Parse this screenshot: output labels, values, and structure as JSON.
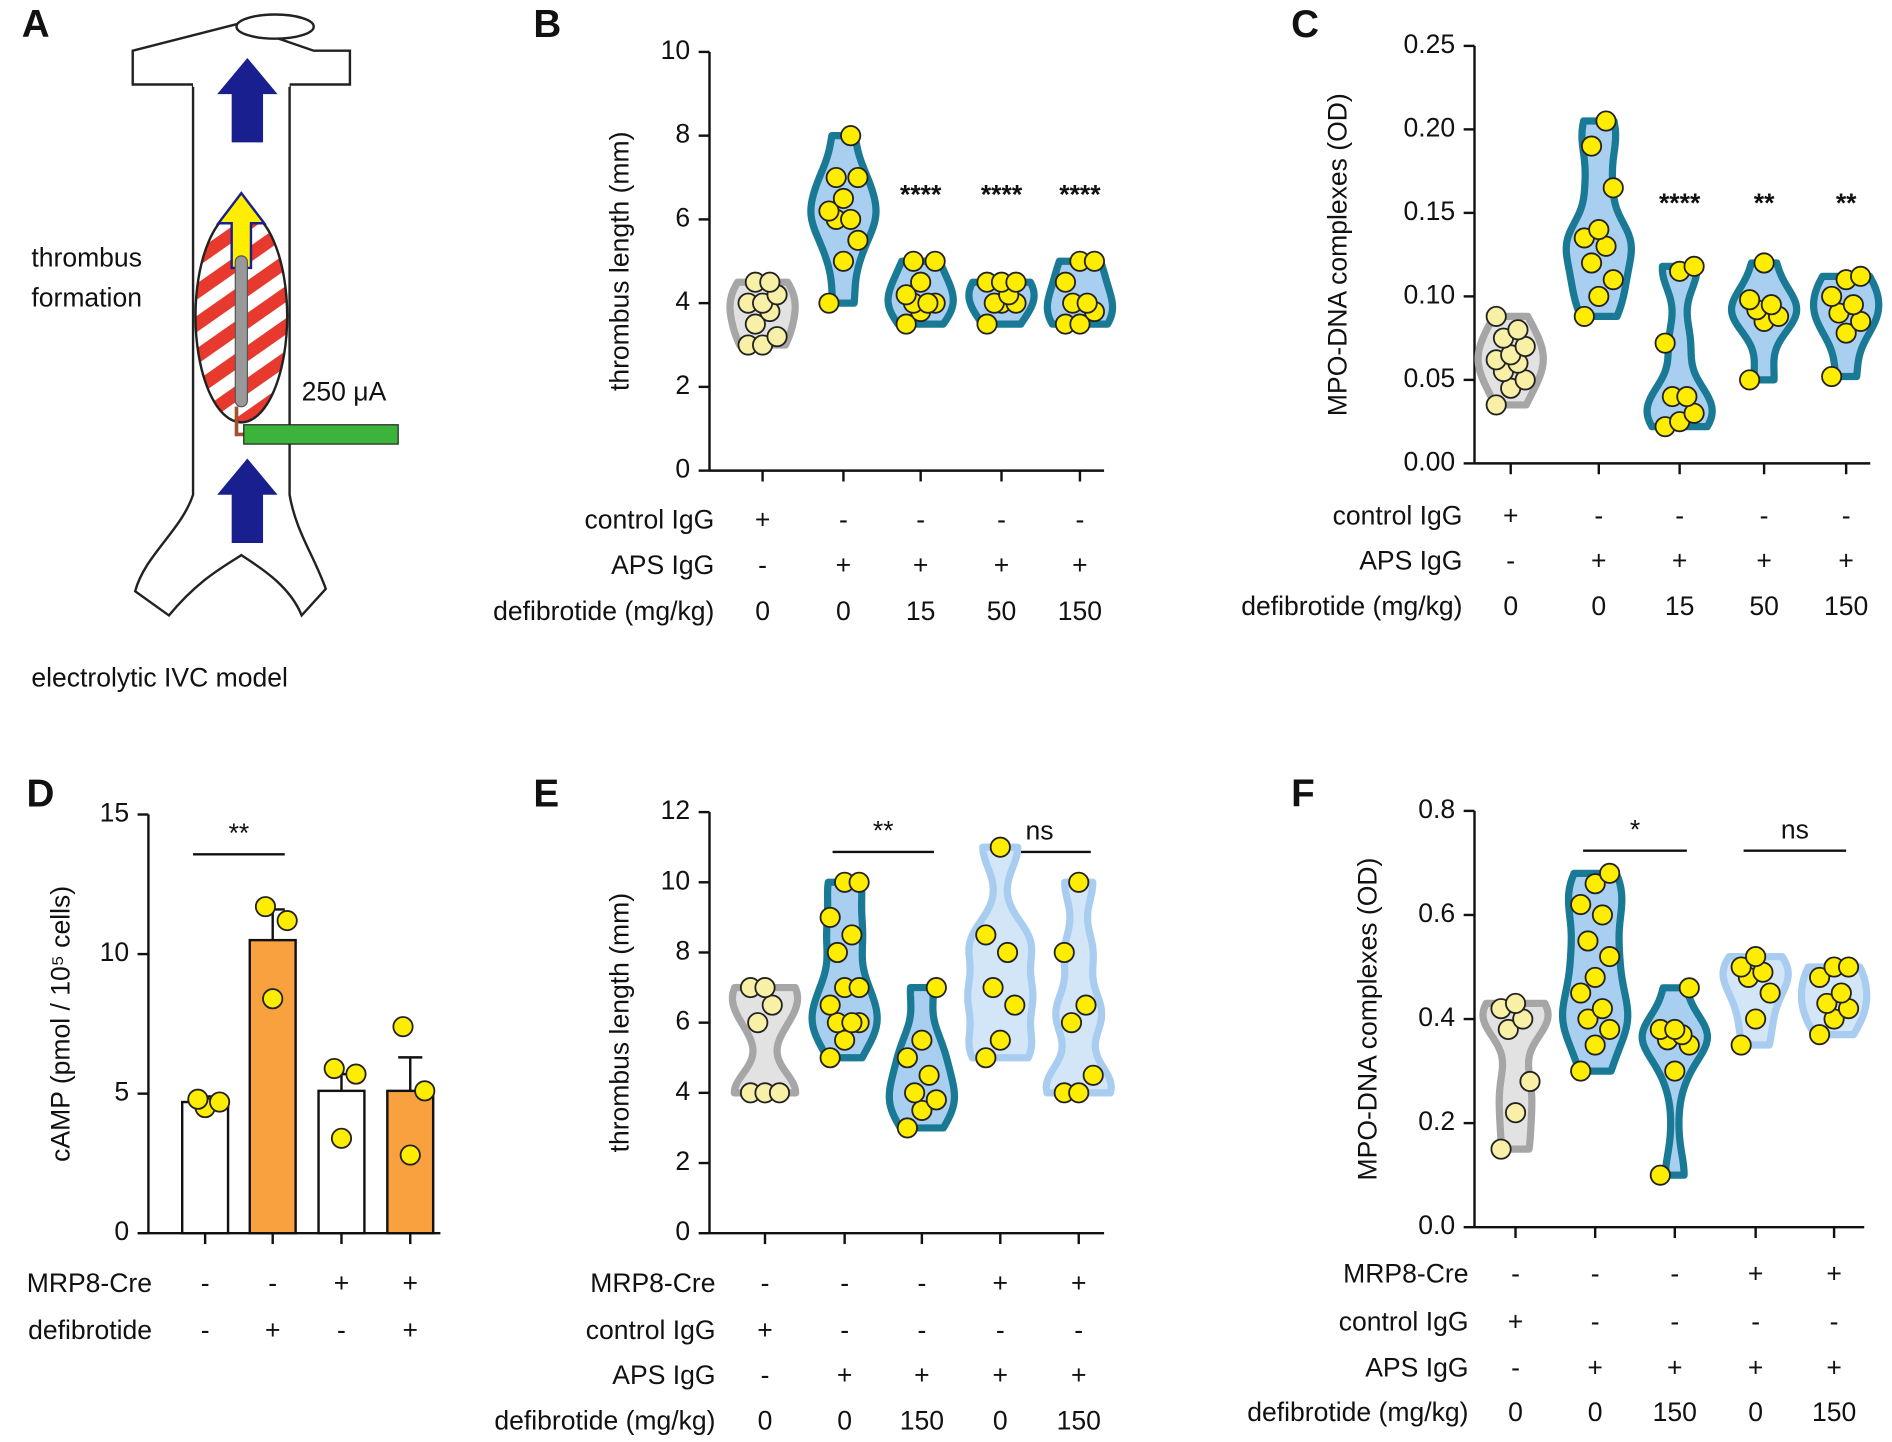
{
  "diagram": {
    "panel": "A",
    "labels": {
      "thrombus": [
        "thrombus",
        "formation"
      ],
      "current": "250 μA",
      "caption": "electrolytic IVC model"
    }
  },
  "chart_data": [
    {
      "type": "violin",
      "panel": "B",
      "y_label": "thrombus length (mm)",
      "ylim": [
        0,
        10
      ],
      "yticks": [
        0,
        2,
        4,
        6,
        8,
        10
      ],
      "row_labels": [
        "control IgG",
        "APS IgG",
        "defibrotide (mg/kg)"
      ],
      "rows": [
        [
          "+",
          "-",
          "-",
          "-",
          "-"
        ],
        [
          "-",
          "+",
          "+",
          "+",
          "+"
        ],
        [
          0,
          0,
          15,
          50,
          150
        ]
      ],
      "significance": [
        null,
        null,
        "****",
        "****",
        "****"
      ],
      "significance_style": "star",
      "groups": [
        {
          "values": [
            3,
            3,
            3.2,
            3.5,
            3.8,
            4,
            4,
            4.2,
            4.5,
            4.5
          ],
          "edge": "#a6a6a6",
          "fill": "#e2e2e2",
          "point_color": "#f7f0a6"
        },
        {
          "values": [
            4,
            5,
            5.5,
            6,
            6,
            6.2,
            6.5,
            7,
            7,
            8
          ],
          "edge": "#1a7a96",
          "fill": "#a8cff0",
          "point_color": "#ffed00"
        },
        {
          "values": [
            3.5,
            3.8,
            4,
            4,
            4,
            4.2,
            4.5,
            5,
            5
          ],
          "edge": "#1a7a96",
          "fill": "#a8cff0",
          "point_color": "#ffed00"
        },
        {
          "values": [
            3.5,
            4,
            4,
            4,
            4.2,
            4.5,
            4.5,
            4.5
          ],
          "edge": "#1a7a96",
          "fill": "#a8cff0",
          "point_color": "#ffed00"
        },
        {
          "values": [
            3.5,
            3.5,
            3.8,
            4,
            4,
            4.5,
            5,
            5
          ],
          "edge": "#1a7a96",
          "fill": "#a8cff0",
          "point_color": "#ffed00"
        }
      ]
    },
    {
      "type": "violin",
      "panel": "C",
      "y_label": "MPO-DNA complexes (OD)",
      "ylim": [
        0,
        0.25
      ],
      "yticks": [
        {
          "value": 0,
          "label": "0.00"
        },
        {
          "value": 0.05,
          "label": "0.05"
        },
        {
          "value": 0.1,
          "label": "0.10"
        },
        {
          "value": 0.15,
          "label": "0.15"
        },
        {
          "value": 0.2,
          "label": "0.20"
        },
        {
          "value": 0.25,
          "label": "0.25"
        }
      ],
      "row_labels": [
        "control IgG",
        "APS IgG",
        "defibrotide (mg/kg)"
      ],
      "rows": [
        [
          "+",
          "-",
          "-",
          "-",
          "-"
        ],
        [
          "-",
          "+",
          "+",
          "+",
          "+"
        ],
        [
          0,
          0,
          15,
          50,
          150
        ]
      ],
      "significance": [
        null,
        null,
        "****",
        "**",
        "**"
      ],
      "significance_style": "star",
      "groups": [
        {
          "values": [
            0.035,
            0.045,
            0.05,
            0.055,
            0.06,
            0.062,
            0.065,
            0.07,
            0.075,
            0.08,
            0.088
          ],
          "edge": "#a6a6a6",
          "fill": "#e2e2e2",
          "point_color": "#f7f0a6"
        },
        {
          "values": [
            0.088,
            0.1,
            0.11,
            0.12,
            0.13,
            0.135,
            0.14,
            0.165,
            0.19,
            0.205
          ],
          "edge": "#1a7a96",
          "fill": "#a8cff0",
          "point_color": "#ffed00"
        },
        {
          "values": [
            0.022,
            0.025,
            0.03,
            0.04,
            0.04,
            0.072,
            0.115,
            0.118
          ],
          "edge": "#1a7a96",
          "fill": "#a8cff0",
          "point_color": "#ffed00"
        },
        {
          "values": [
            0.05,
            0.085,
            0.088,
            0.092,
            0.095,
            0.098,
            0.12
          ],
          "edge": "#1a7a96",
          "fill": "#a8cff0",
          "point_color": "#ffed00"
        },
        {
          "values": [
            0.052,
            0.078,
            0.085,
            0.09,
            0.095,
            0.1,
            0.11,
            0.112
          ],
          "edge": "#1a7a96",
          "fill": "#a8cff0",
          "point_color": "#ffed00"
        }
      ]
    },
    {
      "type": "bar",
      "panel": "D",
      "y_label": "cAMP (pmol / 10⁵ cells)",
      "ylim": [
        0,
        15
      ],
      "yticks": [
        0,
        5,
        10,
        15
      ],
      "row_labels": [
        "MRP8-Cre",
        "defibrotide"
      ],
      "rows": [
        [
          "-",
          "-",
          "+",
          "+"
        ],
        [
          "-",
          "+",
          "-",
          "+"
        ]
      ],
      "significance": [
        "**",
        null,
        null,
        null
      ],
      "significance_style": "bracket",
      "values": [
        4.7,
        10.5,
        5.1,
        5.1
      ],
      "errors": [
        0.2,
        1.1,
        0.6,
        1.2
      ],
      "colors": [
        "#ffffff",
        "#f9a03f",
        "#ffffff",
        "#f9a03f"
      ],
      "point_color": "#ffed00",
      "points": [
        [
          4.5,
          4.7,
          4.8
        ],
        [
          8.4,
          11.2,
          11.7
        ],
        [
          3.4,
          5.7,
          5.9
        ],
        [
          2.8,
          5.1,
          7.4
        ]
      ]
    },
    {
      "type": "violin",
      "panel": "E",
      "y_label": "thrombus length (mm)",
      "ylim": [
        0,
        12
      ],
      "yticks": [
        0,
        2,
        4,
        6,
        8,
        10,
        12
      ],
      "row_labels": [
        "MRP8-Cre",
        "control IgG",
        "APS IgG",
        "defibrotide (mg/kg)"
      ],
      "rows": [
        [
          "-",
          "-",
          "-",
          "+",
          "+"
        ],
        [
          "+",
          "-",
          "-",
          "-",
          "-"
        ],
        [
          "-",
          "+",
          "+",
          "+",
          "+"
        ],
        [
          0,
          0,
          150,
          0,
          150
        ]
      ],
      "significance": [
        null,
        "**",
        null,
        "ns",
        null
      ],
      "significance_style": "bracket",
      "groups": [
        {
          "values": [
            4,
            4,
            4,
            6,
            6.5,
            7,
            7
          ],
          "edge": "#a6a6a6",
          "fill": "#e2e2e2",
          "point_color": "#f7f0a6"
        },
        {
          "values": [
            5,
            5.5,
            6,
            6,
            6,
            6.5,
            7,
            7,
            8,
            8.5,
            9,
            10,
            10
          ],
          "edge": "#1a7a96",
          "fill": "#a8cff0",
          "point_color": "#ffed00"
        },
        {
          "values": [
            3,
            3.5,
            3.8,
            4,
            4.5,
            5,
            5.5,
            7
          ],
          "edge": "#1a7a96",
          "fill": "#a8cff0",
          "point_color": "#ffed00"
        },
        {
          "values": [
            5,
            5.5,
            6.5,
            7,
            8,
            8.5,
            11
          ],
          "edge": "#a9cdf0",
          "fill": "#d3e6f8",
          "point_color": "#ffed00"
        },
        {
          "values": [
            4,
            4,
            4.5,
            6,
            6.5,
            8,
            10
          ],
          "edge": "#a9cdf0",
          "fill": "#d3e6f8",
          "point_color": "#ffed00"
        }
      ]
    },
    {
      "type": "violin",
      "panel": "F",
      "y_label": "MPO-DNA complexes (OD)",
      "ylim": [
        0,
        0.8
      ],
      "yticks": [
        {
          "value": 0,
          "label": "0.0"
        },
        {
          "value": 0.2,
          "label": "0.2"
        },
        {
          "value": 0.4,
          "label": "0.4"
        },
        {
          "value": 0.6,
          "label": "0.6"
        },
        {
          "value": 0.8,
          "label": "0.8"
        }
      ],
      "row_labels": [
        "MRP8-Cre",
        "control IgG",
        "APS IgG",
        "defibrotide (mg/kg)"
      ],
      "rows": [
        [
          "-",
          "-",
          "-",
          "+",
          "+"
        ],
        [
          "+",
          "-",
          "-",
          "-",
          "-"
        ],
        [
          "-",
          "+",
          "+",
          "+",
          "+"
        ],
        [
          0,
          0,
          150,
          0,
          150
        ]
      ],
      "significance": [
        null,
        "*",
        null,
        "ns",
        null
      ],
      "significance_style": "bracket",
      "groups": [
        {
          "values": [
            0.15,
            0.22,
            0.28,
            0.38,
            0.4,
            0.42,
            0.43
          ],
          "edge": "#a6a6a6",
          "fill": "#e2e2e2",
          "point_color": "#f7f0a6"
        },
        {
          "values": [
            0.3,
            0.35,
            0.38,
            0.4,
            0.42,
            0.45,
            0.48,
            0.52,
            0.55,
            0.6,
            0.62,
            0.66,
            0.68
          ],
          "edge": "#1a7a96",
          "fill": "#a8cff0",
          "point_color": "#ffed00"
        },
        {
          "values": [
            0.1,
            0.3,
            0.35,
            0.36,
            0.37,
            0.38,
            0.38,
            0.46
          ],
          "edge": "#1a7a96",
          "fill": "#a8cff0",
          "point_color": "#ffed00"
        },
        {
          "values": [
            0.35,
            0.4,
            0.45,
            0.48,
            0.49,
            0.5,
            0.52
          ],
          "edge": "#a9cdf0",
          "fill": "#d3e6f8",
          "point_color": "#ffed00"
        },
        {
          "values": [
            0.37,
            0.4,
            0.42,
            0.43,
            0.45,
            0.48,
            0.5,
            0.5
          ],
          "edge": "#a9cdf0",
          "fill": "#d3e6f8",
          "point_color": "#ffed00"
        }
      ]
    }
  ]
}
